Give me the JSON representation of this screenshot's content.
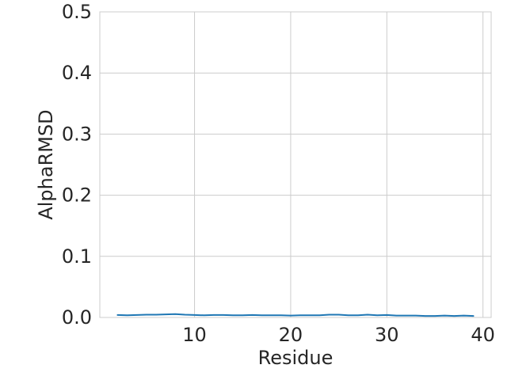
{
  "chart_data": {
    "type": "line",
    "title": "",
    "xlabel": "Residue",
    "ylabel": "AlphaRMSD",
    "xlim": [
      0.15,
      40.85
    ],
    "ylim": [
      0.0,
      0.5
    ],
    "xticks": [
      10,
      20,
      30,
      40
    ],
    "xtick_labels": [
      "10",
      "20",
      "30",
      "40"
    ],
    "yticks": [
      0.0,
      0.1,
      0.2,
      0.3,
      0.4,
      0.5
    ],
    "ytick_labels": [
      "0.0",
      "0.1",
      "0.2",
      "0.3",
      "0.4",
      "0.5"
    ],
    "grid": true,
    "colors": {
      "line": "#1f77b4"
    },
    "series": [
      {
        "x": [
          2,
          3,
          4,
          5,
          6,
          7,
          8,
          9,
          10,
          11,
          12,
          13,
          14,
          15,
          16,
          17,
          18,
          19,
          20,
          21,
          22,
          23,
          24,
          25,
          26,
          27,
          28,
          29,
          30,
          31,
          32,
          33,
          34,
          35,
          36,
          37,
          38,
          39
        ],
        "y": [
          0.004,
          0.0035,
          0.004,
          0.0045,
          0.0045,
          0.005,
          0.0055,
          0.0045,
          0.004,
          0.0035,
          0.004,
          0.004,
          0.0035,
          0.0035,
          0.004,
          0.0035,
          0.0035,
          0.0035,
          0.003,
          0.0035,
          0.0035,
          0.0035,
          0.0045,
          0.0045,
          0.0035,
          0.0035,
          0.0045,
          0.0035,
          0.004,
          0.003,
          0.003,
          0.003,
          0.0025,
          0.0025,
          0.003,
          0.0025,
          0.003,
          0.0025
        ]
      }
    ]
  }
}
